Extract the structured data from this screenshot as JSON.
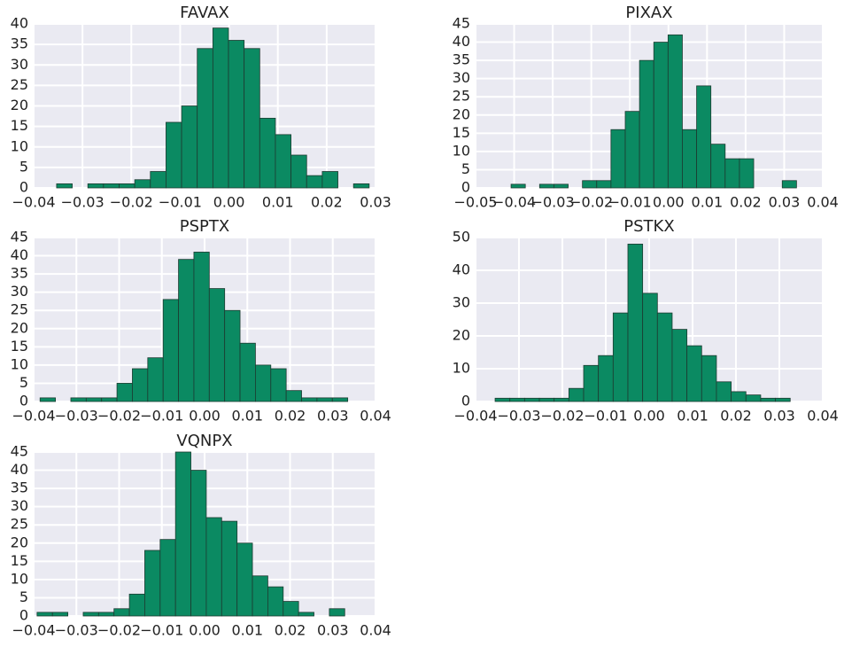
{
  "chart_data": [
    {
      "type": "histogram",
      "title": "FAVAX",
      "color": "#0b8a62",
      "grid": true,
      "bins": [
        -0.0353,
        -0.0321,
        -0.0289,
        -0.0257,
        -0.0225,
        -0.0193,
        -0.0161,
        -0.0129,
        -0.0097,
        -0.0065,
        -0.0033,
        -0.0001,
        0.0031,
        0.0063,
        0.0095,
        0.0127,
        0.0159,
        0.0191,
        0.0223,
        0.0255,
        0.0287
      ],
      "values": [
        1,
        0,
        1,
        1,
        1,
        2,
        4,
        16,
        20,
        34,
        39,
        36,
        34,
        17,
        13,
        8,
        3,
        4,
        0,
        1
      ],
      "xlim": [
        -0.04,
        0.03
      ],
      "ylim": [
        0,
        40
      ],
      "xticks": [
        {
          "value": -0.04,
          "label": "−0.04"
        },
        {
          "value": -0.03,
          "label": "−0.03"
        },
        {
          "value": -0.02,
          "label": "−0.02"
        },
        {
          "value": -0.01,
          "label": "−0.01"
        },
        {
          "value": 0,
          "label": "0.00"
        },
        0.01,
        0.02,
        0.03
      ],
      "yticks": [
        0,
        5,
        10,
        15,
        20,
        25,
        30,
        35,
        40
      ]
    },
    {
      "type": "histogram",
      "title": "PIXAX",
      "color": "#0b8a62",
      "grid": true,
      "bins": [
        -0.0408,
        -0.0371,
        -0.0334,
        -0.0297,
        -0.026,
        -0.0223,
        -0.0186,
        -0.0149,
        -0.0112,
        -0.0075,
        -0.0038,
        -0.0001,
        0.0036,
        0.0073,
        0.011,
        0.0147,
        0.0184,
        0.0221,
        0.0258,
        0.0295,
        0.0332
      ],
      "values": [
        1,
        0,
        1,
        1,
        0,
        2,
        2,
        16,
        21,
        35,
        40,
        42,
        16,
        28,
        12,
        8,
        8,
        0,
        0,
        2
      ],
      "xlim": [
        -0.05,
        0.04
      ],
      "ylim": [
        0,
        45
      ],
      "xticks": [
        {
          "value": -0.05,
          "label": "−0.05"
        },
        {
          "value": -0.04,
          "label": "−0.04"
        },
        {
          "value": -0.03,
          "label": "−0.03"
        },
        {
          "value": -0.02,
          "label": "−0.02"
        },
        {
          "value": -0.01,
          "label": "−0.01"
        },
        {
          "value": 0,
          "label": "0.00"
        },
        0.01,
        0.02,
        0.03,
        0.04
      ],
      "yticks": [
        0,
        5,
        10,
        15,
        20,
        25,
        30,
        35,
        40,
        45
      ]
    },
    {
      "type": "histogram",
      "title": "PSPTX",
      "color": "#0b8a62",
      "grid": true,
      "bins": [
        -0.0385,
        -0.0349,
        -0.0313,
        -0.0277,
        -0.0241,
        -0.0205,
        -0.0169,
        -0.0133,
        -0.0097,
        -0.0061,
        -0.0025,
        0.0011,
        0.0047,
        0.0083,
        0.0119,
        0.0155,
        0.0191,
        0.0227,
        0.0263,
        0.0299,
        0.0335
      ],
      "values": [
        1,
        0,
        1,
        1,
        1,
        5,
        9,
        12,
        28,
        39,
        41,
        31,
        25,
        16,
        10,
        9,
        3,
        1,
        1,
        1
      ],
      "xlim": [
        -0.04,
        0.04
      ],
      "ylim": [
        0,
        45
      ],
      "xticks": [
        {
          "value": -0.04,
          "label": "−0.04"
        },
        {
          "value": -0.03,
          "label": "−0.03"
        },
        {
          "value": -0.02,
          "label": "−0.02"
        },
        {
          "value": -0.01,
          "label": "−0.01"
        },
        {
          "value": 0,
          "label": "0.00"
        },
        0.01,
        0.02,
        0.03,
        0.04
      ],
      "yticks": [
        0,
        5,
        10,
        15,
        20,
        25,
        30,
        35,
        40,
        45
      ]
    },
    {
      "type": "histogram",
      "title": "PSTKX",
      "color": "#0b8a62",
      "grid": true,
      "bins": [
        -0.0355,
        -0.0321,
        -0.0287,
        -0.0253,
        -0.0219,
        -0.0185,
        -0.0151,
        -0.0117,
        -0.0083,
        -0.0049,
        -0.0015,
        0.0019,
        0.0053,
        0.0087,
        0.0121,
        0.0155,
        0.0189,
        0.0223,
        0.0257,
        0.0291,
        0.0325
      ],
      "values": [
        1,
        1,
        1,
        1,
        1,
        4,
        11,
        14,
        27,
        48,
        33,
        27,
        22,
        17,
        14,
        6,
        3,
        2,
        1,
        1
      ],
      "xlim": [
        -0.04,
        0.04
      ],
      "ylim": [
        0,
        50
      ],
      "xticks": [
        {
          "value": -0.04,
          "label": "−0.04"
        },
        {
          "value": -0.03,
          "label": "−0.03"
        },
        {
          "value": -0.02,
          "label": "−0.02"
        },
        {
          "value": -0.01,
          "label": "−0.01"
        },
        {
          "value": 0,
          "label": "0.00"
        },
        0.01,
        0.02,
        0.03,
        0.04
      ],
      "yticks": [
        0,
        10,
        20,
        30,
        40,
        50
      ]
    },
    {
      "type": "histogram",
      "title": "VQNPX",
      "color": "#0b8a62",
      "grid": true,
      "bins": [
        -0.0392,
        -0.0356,
        -0.032,
        -0.0284,
        -0.0248,
        -0.0212,
        -0.0176,
        -0.014,
        -0.0104,
        -0.0068,
        -0.0032,
        0.0004,
        0.004,
        0.0076,
        0.0112,
        0.0148,
        0.0184,
        0.022,
        0.0256,
        0.0292,
        0.0328
      ],
      "values": [
        1,
        1,
        0,
        1,
        1,
        2,
        6,
        18,
        21,
        45,
        40,
        27,
        26,
        20,
        11,
        8,
        4,
        1,
        0,
        2
      ],
      "xlim": [
        -0.04,
        0.04
      ],
      "ylim": [
        0,
        45
      ],
      "xticks": [
        {
          "value": -0.04,
          "label": "−0.04"
        },
        {
          "value": -0.03,
          "label": "−0.03"
        },
        {
          "value": -0.02,
          "label": "−0.02"
        },
        {
          "value": -0.01,
          "label": "−0.01"
        },
        {
          "value": 0,
          "label": "0.00"
        },
        0.01,
        0.02,
        0.03,
        0.04
      ],
      "yticks": [
        0,
        5,
        10,
        15,
        20,
        25,
        30,
        35,
        40,
        45
      ]
    }
  ]
}
